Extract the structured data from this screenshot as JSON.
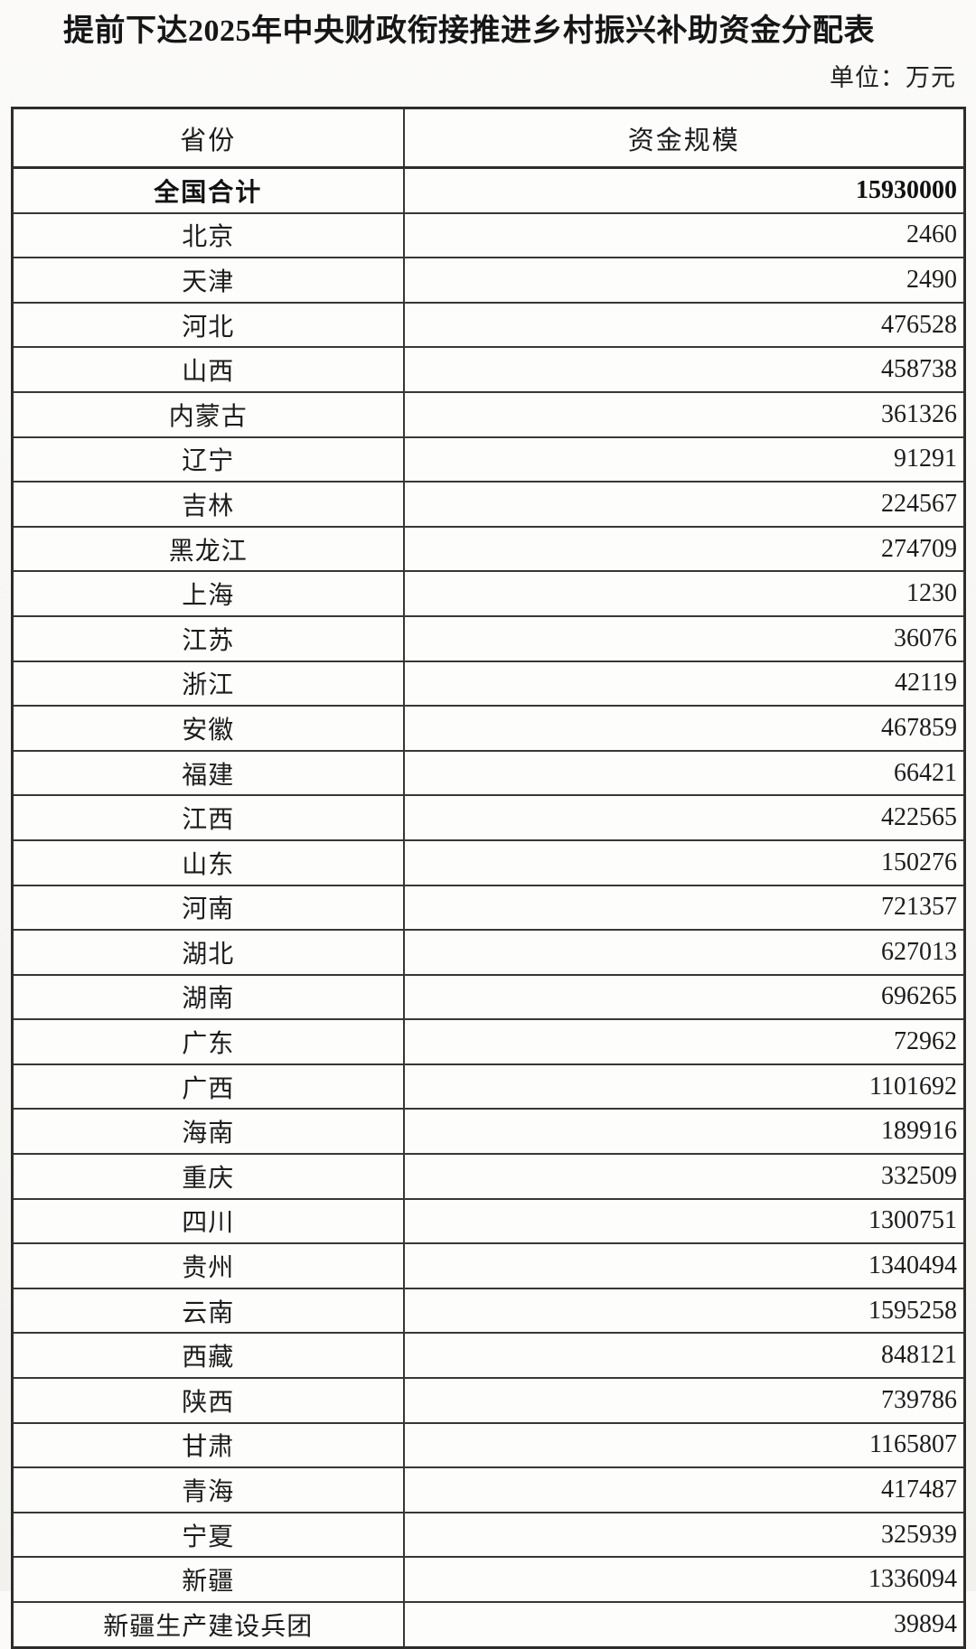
{
  "page": {
    "title": "提前下达2025年中央财政衔接推进乡村振兴补助资金分配表",
    "unit_note": "单位：万元"
  },
  "table": {
    "columns": {
      "province": "省份",
      "amount": "资金规模"
    },
    "total_row": {
      "province": "全国合计",
      "amount": "15930000"
    },
    "rows": [
      {
        "province": "北京",
        "amount": "2460"
      },
      {
        "province": "天津",
        "amount": "2490"
      },
      {
        "province": "河北",
        "amount": "476528"
      },
      {
        "province": "山西",
        "amount": "458738"
      },
      {
        "province": "内蒙古",
        "amount": "361326"
      },
      {
        "province": "辽宁",
        "amount": "91291"
      },
      {
        "province": "吉林",
        "amount": "224567"
      },
      {
        "province": "黑龙江",
        "amount": "274709"
      },
      {
        "province": "上海",
        "amount": "1230"
      },
      {
        "province": "江苏",
        "amount": "36076"
      },
      {
        "province": "浙江",
        "amount": "42119"
      },
      {
        "province": "安徽",
        "amount": "467859"
      },
      {
        "province": "福建",
        "amount": "66421"
      },
      {
        "province": "江西",
        "amount": "422565"
      },
      {
        "province": "山东",
        "amount": "150276"
      },
      {
        "province": "河南",
        "amount": "721357"
      },
      {
        "province": "湖北",
        "amount": "627013"
      },
      {
        "province": "湖南",
        "amount": "696265"
      },
      {
        "province": "广东",
        "amount": "72962"
      },
      {
        "province": "广西",
        "amount": "1101692"
      },
      {
        "province": "海南",
        "amount": "189916"
      },
      {
        "province": "重庆",
        "amount": "332509"
      },
      {
        "province": "四川",
        "amount": "1300751"
      },
      {
        "province": "贵州",
        "amount": "1340494"
      },
      {
        "province": "云南",
        "amount": "1595258"
      },
      {
        "province": "西藏",
        "amount": "848121"
      },
      {
        "province": "陕西",
        "amount": "739786"
      },
      {
        "province": "甘肃",
        "amount": "1165807"
      },
      {
        "province": "青海",
        "amount": "417487"
      },
      {
        "province": "宁夏",
        "amount": "325939"
      },
      {
        "province": "新疆",
        "amount": "1336094"
      },
      {
        "province": "新疆生产建设兵团",
        "amount": "39894"
      }
    ]
  }
}
